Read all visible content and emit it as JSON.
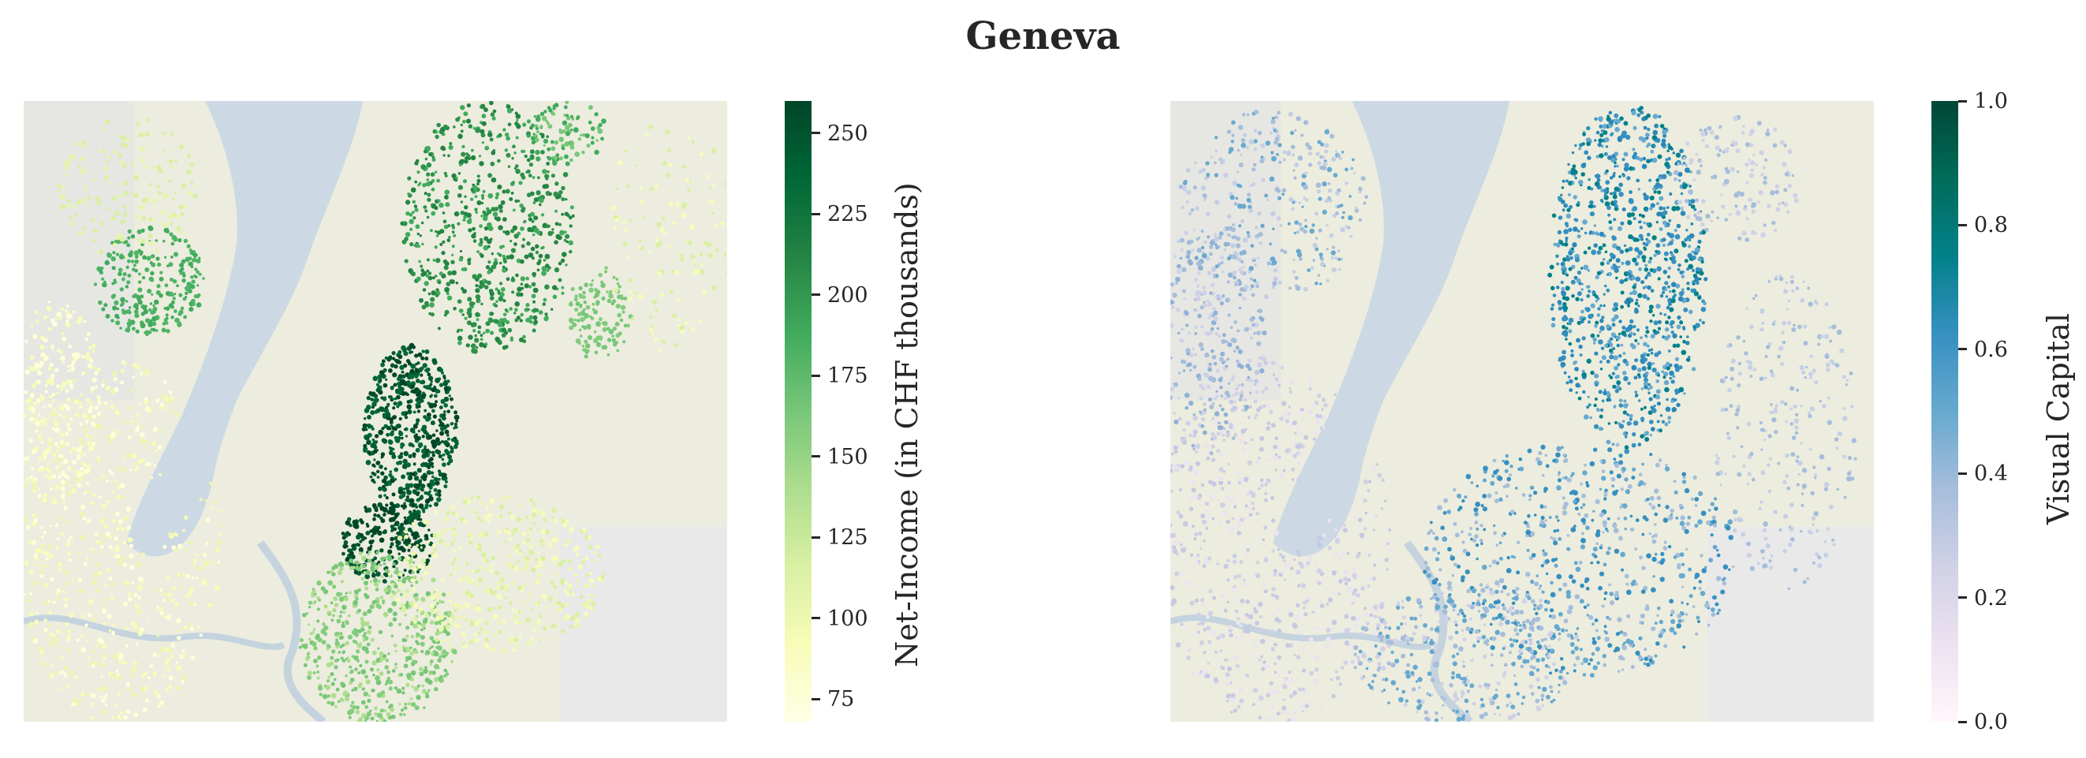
{
  "title": "Geneva",
  "panels": [
    {
      "name": "net-income",
      "colorbar": {
        "label": "Net-Income (in CHF thousands)",
        "min": 68,
        "max": 260,
        "ticks": [
          75,
          100,
          125,
          150,
          175,
          200,
          225,
          250
        ],
        "colors": [
          "#ffffe5",
          "#f7fcb9",
          "#d9f0a3",
          "#addd8e",
          "#78c679",
          "#41ab5d",
          "#238443",
          "#006837",
          "#004529"
        ]
      }
    },
    {
      "name": "visual-capital",
      "colorbar": {
        "label": "Visual Capital",
        "min": 0.0,
        "max": 1.0,
        "ticks": [
          "0.0",
          "0.2",
          "0.4",
          "0.6",
          "0.8",
          "1.0"
        ],
        "colors": [
          "#fff7fb",
          "#ece2f0",
          "#d0d1e6",
          "#a6bddb",
          "#67a9cf",
          "#3690c0",
          "#02818a",
          "#016c59",
          "#014636"
        ]
      }
    }
  ]
}
